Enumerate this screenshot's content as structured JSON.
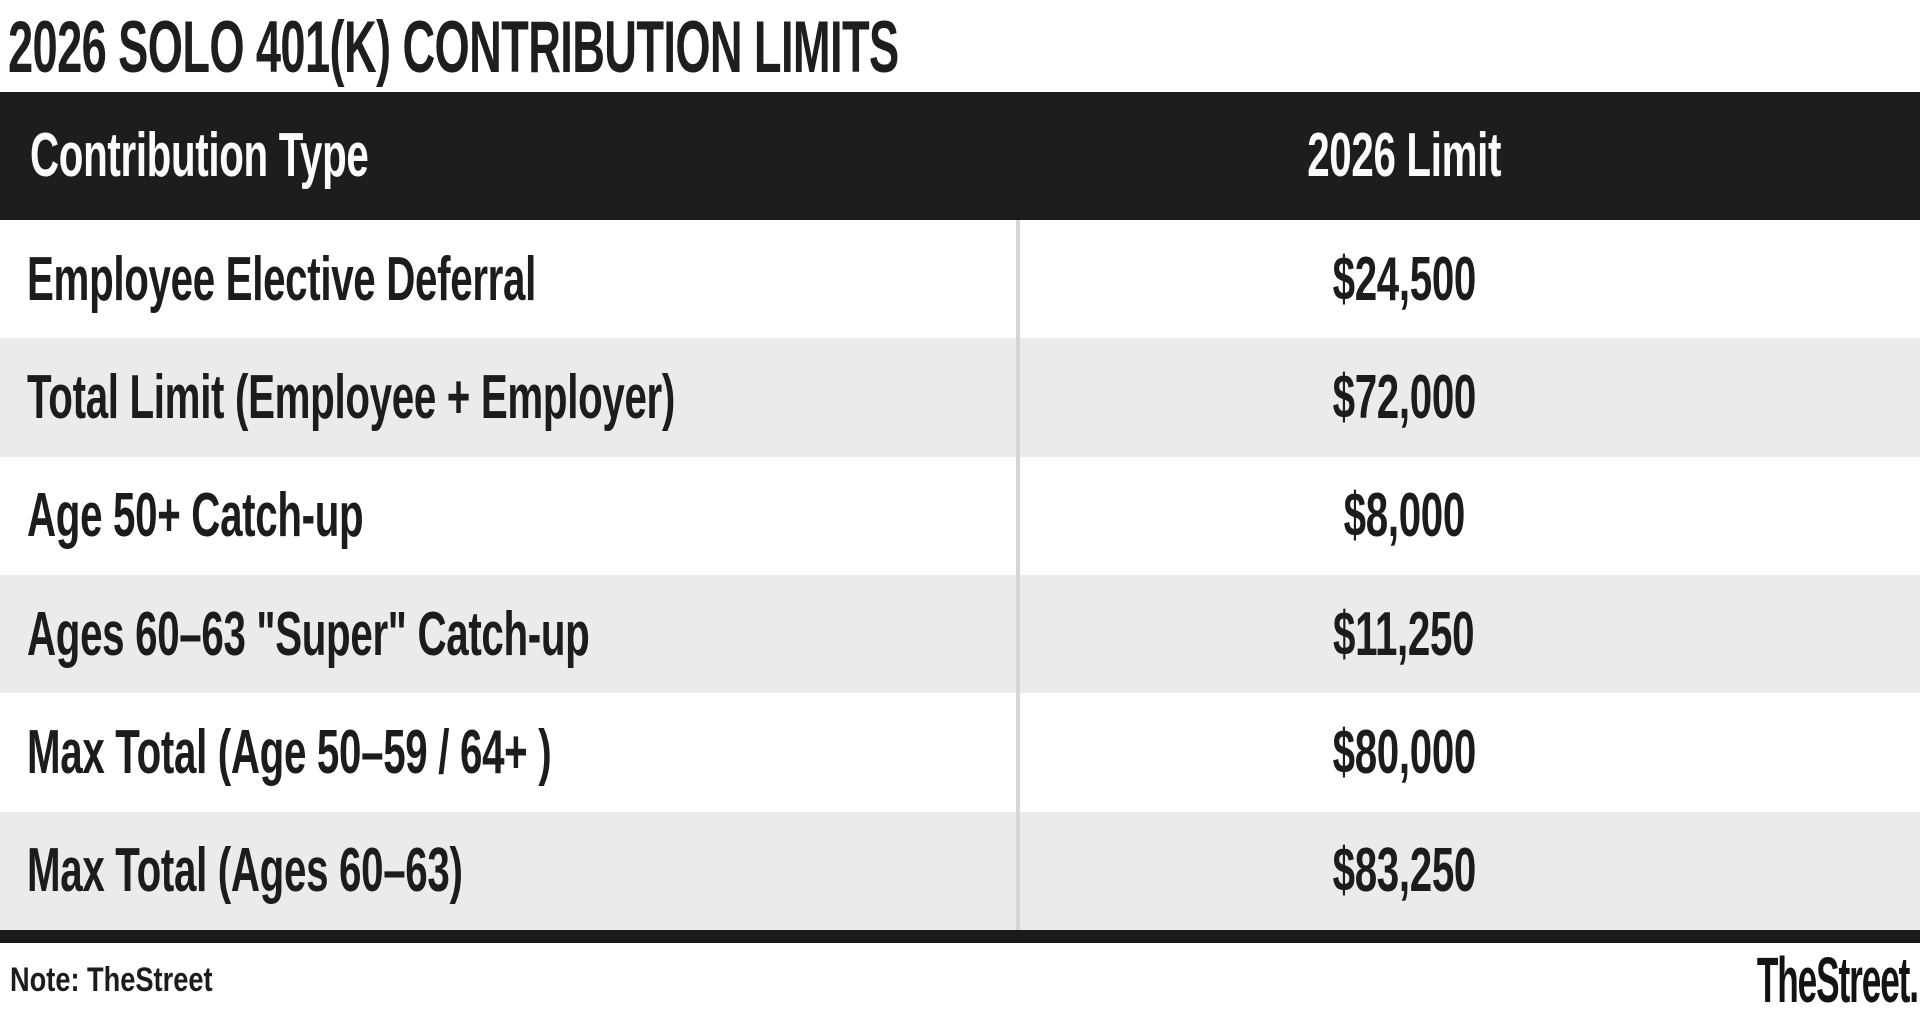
{
  "title": "2026 SOLO 401(K) CONTRIBUTION LIMITS",
  "chart_data": {
    "type": "table",
    "title": "2026 SOLO 401(K) CONTRIBUTION LIMITS",
    "columns": [
      "Contribution Type",
      "2026 Limit"
    ],
    "rows": [
      [
        "Employee Elective Deferral",
        "$24,500"
      ],
      [
        "Total Limit (Employee + Employer)",
        "$72,000"
      ],
      [
        "Age 50+ Catch-up",
        "$8,000"
      ],
      [
        "Ages 60–63 \"Super\" Catch-up",
        "$11,250"
      ],
      [
        "Max Total (Age 50–59 / 64+ )",
        "$80,000"
      ],
      [
        "Max Total (Ages 60–63)",
        "$83,250"
      ]
    ],
    "values_numeric": [
      24500,
      72000,
      8000,
      11250,
      80000,
      83250
    ],
    "layout_hints": {
      "striped_rows": true,
      "stripe_on": "even rows (2nd, 4th, 6th)",
      "value_column_alignment": "center",
      "label_column_alignment": "left"
    }
  },
  "footer": {
    "note": "Note: TheStreet",
    "brand": "TheStreet."
  },
  "colors": {
    "header_bg": "#1e1c1c",
    "header_text": "#fbfbfb",
    "row_stripe_bg": "#ebebeb",
    "row_white_bg": "#ffffff",
    "column_divider": "#d6d6d6",
    "separator_bar": "#1b1919",
    "body_text": "#1d1b1b"
  }
}
